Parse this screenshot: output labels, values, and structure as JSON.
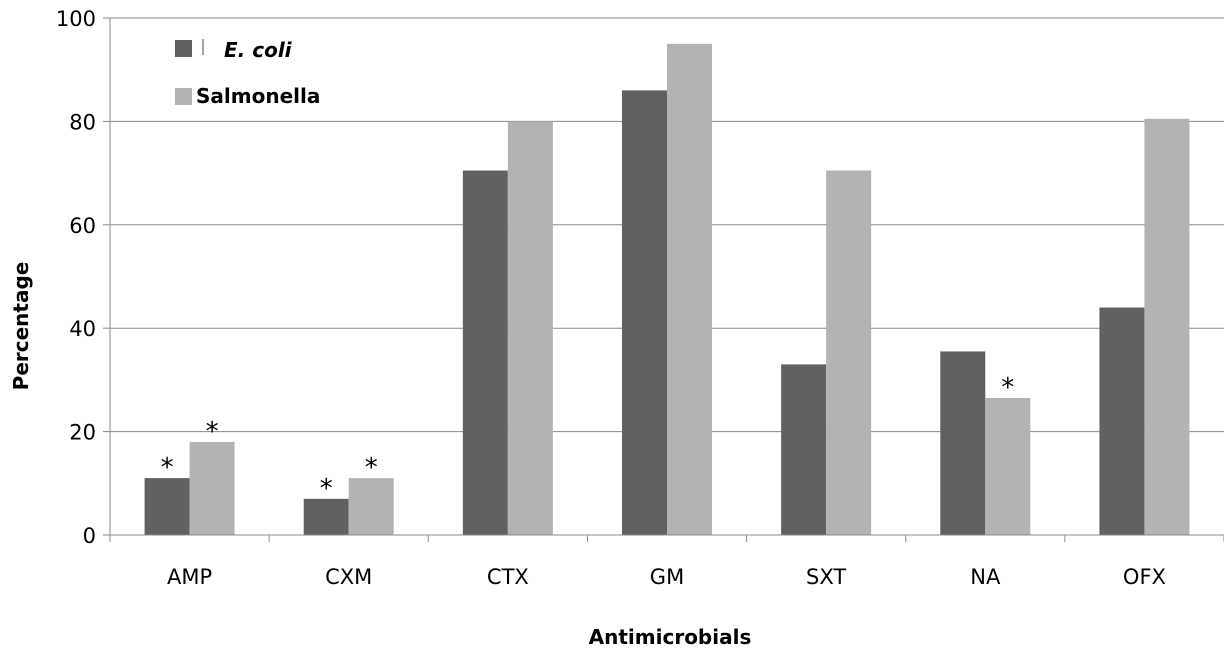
{
  "chart_data": {
    "type": "bar",
    "title": "",
    "xlabel": "Antimicrobials",
    "ylabel": "Percentage",
    "ylim": [
      0,
      100
    ],
    "yticks": [
      0,
      20,
      40,
      60,
      80,
      100
    ],
    "grid": true,
    "legend_position": "top-left",
    "categories": [
      "AMP",
      "CXM",
      "CTX",
      "GM",
      "SXT",
      "NA",
      "OFX"
    ],
    "series": [
      {
        "name": "E. coli",
        "color": "#616161",
        "values": [
          11,
          7,
          70.5,
          86,
          33,
          35.5,
          44
        ],
        "significant": [
          true,
          true,
          false,
          false,
          false,
          false,
          false
        ]
      },
      {
        "name": "Salmonella",
        "color": "#b3b3b3",
        "values": [
          18,
          11,
          80,
          95,
          70.5,
          26.5,
          80.5
        ],
        "significant": [
          true,
          true,
          false,
          false,
          false,
          true,
          false
        ]
      }
    ],
    "significance_marker": "*"
  }
}
